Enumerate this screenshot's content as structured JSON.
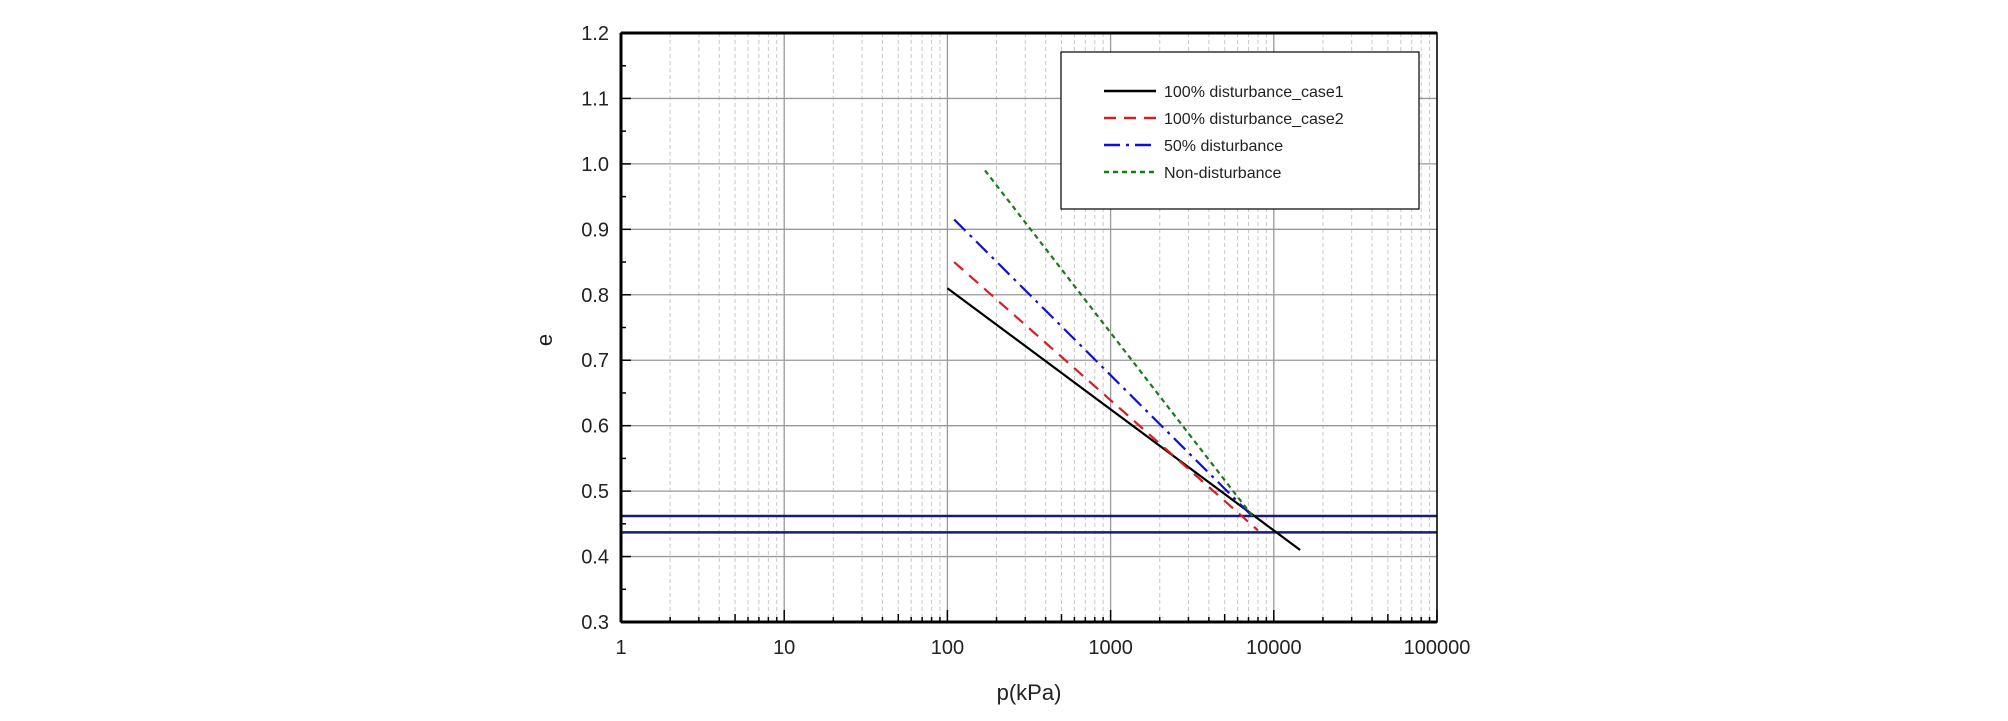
{
  "chart_data": {
    "type": "line",
    "title": "",
    "xlabel": "p(kPa)",
    "ylabel": "e",
    "xscale": "log",
    "xlim": [
      1,
      100000
    ],
    "ylim": [
      0.3,
      1.2
    ],
    "xticks": [
      "1",
      "10",
      "100",
      "1000",
      "10000",
      "100000"
    ],
    "yticks": [
      "0.3",
      "0.4",
      "0.5",
      "0.6",
      "0.7",
      "0.8",
      "0.9",
      "1.0",
      "1.1",
      "1.2"
    ],
    "grid": true,
    "legend_position": "top-right",
    "series": [
      {
        "name": "100% disturbance_case1",
        "color": "#000000",
        "style": "solid",
        "x": [
          100,
          14500
        ],
        "y": [
          0.81,
          0.41
        ]
      },
      {
        "name": "100% disturbance_case2",
        "color": "#d42020",
        "style": "dash",
        "x": [
          110,
          8000
        ],
        "y": [
          0.85,
          0.44
        ]
      },
      {
        "name": "50% disturbance",
        "color": "#1010d0",
        "style": "dashdot",
        "x": [
          110,
          7500
        ],
        "y": [
          0.915,
          0.46
        ]
      },
      {
        "name": "Non-disturbance",
        "color": "#1a7a1a",
        "style": "dot",
        "x": [
          170,
          7500
        ],
        "y": [
          0.99,
          0.46
        ]
      }
    ],
    "reference_lines": [
      {
        "type": "horizontal",
        "y": 0.462,
        "color": "#1a1a7a"
      },
      {
        "type": "horizontal",
        "y": 0.437,
        "color": "#1a1a7a"
      }
    ]
  }
}
